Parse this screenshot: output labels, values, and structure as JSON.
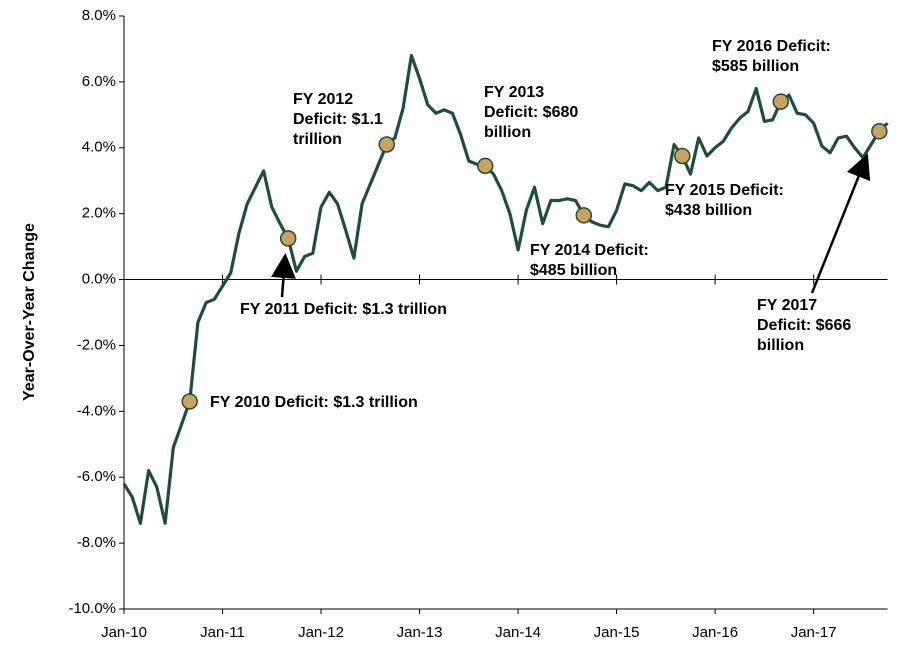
{
  "chart_data": {
    "type": "line",
    "y_label": "Year-Over-Year Change",
    "categories": [
      "Jan-10",
      null,
      null,
      null,
      null,
      null,
      null,
      null,
      null,
      null,
      null,
      null,
      "Jan-11",
      null,
      null,
      null,
      null,
      null,
      null,
      null,
      null,
      null,
      null,
      null,
      "Jan-12",
      null,
      null,
      null,
      null,
      null,
      null,
      null,
      null,
      null,
      null,
      null,
      "Jan-13",
      null,
      null,
      null,
      null,
      null,
      null,
      null,
      null,
      null,
      null,
      null,
      "Jan-14",
      null,
      null,
      null,
      null,
      null,
      null,
      null,
      null,
      null,
      null,
      null,
      "Jan-15",
      null,
      null,
      null,
      null,
      null,
      null,
      null,
      null,
      null,
      null,
      null,
      "Jan-16",
      null,
      null,
      null,
      null,
      null,
      null,
      null,
      null,
      null,
      null,
      null,
      "Jan-17",
      null,
      null,
      null,
      null,
      null,
      null,
      null,
      null,
      null
    ],
    "values": [
      -6.2,
      -6.6,
      -7.4,
      -5.8,
      -6.3,
      -7.4,
      -5.1,
      -4.4,
      -3.7,
      -1.3,
      -0.7,
      -0.6,
      -0.2,
      0.2,
      1.4,
      2.3,
      2.8,
      3.3,
      2.2,
      1.7,
      1.25,
      0.25,
      0.7,
      0.8,
      2.2,
      2.65,
      2.3,
      1.5,
      0.65,
      2.3,
      2.9,
      3.5,
      4.1,
      4.3,
      5.2,
      6.8,
      6.1,
      5.3,
      5.05,
      5.15,
      5.05,
      4.4,
      3.6,
      3.5,
      3.45,
      3.2,
      2.7,
      2.0,
      0.9,
      2.1,
      2.8,
      1.7,
      2.4,
      2.4,
      2.45,
      2.4,
      1.95,
      1.75,
      1.65,
      1.6,
      2.1,
      2.9,
      2.85,
      2.7,
      2.95,
      2.7,
      2.8,
      4.1,
      3.75,
      3.2,
      4.3,
      3.75,
      4.0,
      4.2,
      4.6,
      4.9,
      5.1,
      5.8,
      4.8,
      4.85,
      5.4,
      5.6,
      5.05,
      5.0,
      4.75,
      4.05,
      3.85,
      4.3,
      4.35,
      4.0,
      3.7,
      4.1,
      4.5,
      4.75
    ],
    "color": "#1d4e3c",
    "marker_color": "#c9a35e",
    "ylim": [
      -10,
      8
    ],
    "yticks": [
      {
        "value": -10,
        "label": "-10.0%"
      },
      {
        "value": -8,
        "label": "-8.0%"
      },
      {
        "value": -6,
        "label": "-6.0%"
      },
      {
        "value": -4,
        "label": "-4.0%"
      },
      {
        "value": -2,
        "label": "-2.0%"
      },
      {
        "value": 0,
        "label": "0.0%"
      },
      {
        "value": 2,
        "label": "2.0%"
      },
      {
        "value": 4,
        "label": "4.0%"
      },
      {
        "value": 6,
        "label": "6.0%"
      },
      {
        "value": 8,
        "label": "8.0%"
      }
    ],
    "annotations": [
      {
        "index": 8,
        "lines": [
          "FY 2010 Deficit: $1.3 trillion"
        ]
      },
      {
        "index": 20,
        "lines": [
          "FY 2011 Deficit: $1.3 trillion"
        ]
      },
      {
        "index": 32,
        "lines": [
          "FY 2012",
          "Deficit: $1.1",
          "trillion"
        ]
      },
      {
        "index": 44,
        "lines": [
          "FY 2013",
          "Deficit: $680",
          "billion"
        ]
      },
      {
        "index": 56,
        "lines": [
          "FY 2014 Deficit:",
          "$485 billion"
        ]
      },
      {
        "index": 68,
        "lines": [
          "FY 2015 Deficit:",
          "$438 billion"
        ]
      },
      {
        "index": 80,
        "lines": [
          "FY 2016 Deficit:",
          "$585 billion"
        ]
      },
      {
        "index": 92,
        "lines": [
          "FY 2017",
          "Deficit: $666",
          "billion"
        ]
      }
    ]
  }
}
